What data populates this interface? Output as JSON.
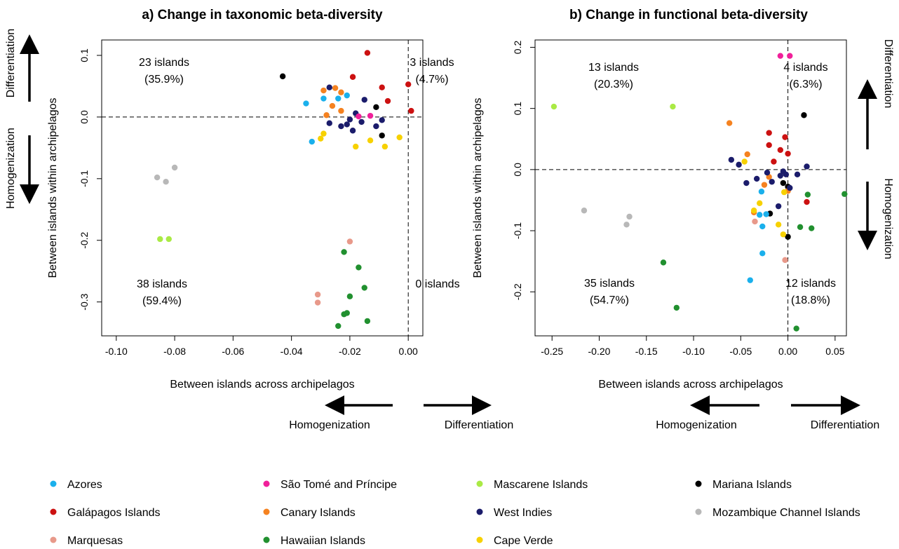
{
  "colors": {
    "Azores": "#1ab0ec",
    "São Tomé and Príncipe": "#f0209a",
    "Mascarene Islands": "#aaea45",
    "Mariana Islands": "#000000",
    "Galápagos Islands": "#cc1111",
    "Canary Islands": "#f58220",
    "West Indies": "#1b1c6b",
    "Mozambique Channel Islands": "#b8b8b8",
    "Marquesas": "#e8998a",
    "Hawaiian Islands": "#21902f",
    "Cape Verde": "#f7d100"
  },
  "legend": [
    "Azores",
    "São Tomé and Príncipe",
    "Mascarene Islands",
    "Mariana Islands",
    "Galápagos Islands",
    "Canary Islands",
    "West Indies",
    "Mozambique Channel Islands",
    "Marquesas",
    "Hawaiian Islands",
    "Cape Verde"
  ],
  "chart_data": [
    {
      "type": "scatter",
      "title": "a) Change in taxonomic beta-diversity",
      "xlabel": "Between islands across archipelagos",
      "ylabel": "Between islands within archipelagos",
      "xlim": [
        -0.105,
        0.005
      ],
      "ylim": [
        -0.355,
        0.125
      ],
      "xticks": [
        -0.1,
        -0.08,
        -0.06,
        -0.04,
        -0.02,
        0.0
      ],
      "xtick_labels": [
        "-0.10",
        "-0.08",
        "-0.06",
        "-0.04",
        "-0.02",
        "0.00"
      ],
      "yticks": [
        -0.3,
        -0.2,
        -0.1,
        0.0,
        0.1
      ],
      "ytick_labels": [
        "-0.3",
        "-0.2",
        "-0.1",
        "0.0",
        "0.1"
      ],
      "reference_lines": {
        "x": 0,
        "y": 0
      },
      "side_arrow_labels": {
        "up": "Differentiation",
        "down": "Homogenization"
      },
      "bottom_arrow_labels": {
        "left": "Homogenization",
        "right": "Differentiation"
      },
      "quadrant_labels": [
        {
          "position": "top-left",
          "count": "23 islands",
          "pct": "(35.9%)"
        },
        {
          "position": "top-right",
          "count": "3 islands",
          "pct": "(4.7%)"
        },
        {
          "position": "bottom-left",
          "count": "38 islands",
          "pct": "(59.4%)"
        },
        {
          "position": "bottom-right",
          "count": "0 islands",
          "pct": ""
        }
      ],
      "points": [
        {
          "g": "Azores",
          "x": -0.035,
          "y": 0.022
        },
        {
          "g": "Azores",
          "x": -0.033,
          "y": -0.04
        },
        {
          "g": "Azores",
          "x": -0.029,
          "y": 0.03
        },
        {
          "g": "Azores",
          "x": -0.021,
          "y": 0.035
        },
        {
          "g": "Azores",
          "x": -0.024,
          "y": 0.03
        },
        {
          "g": "Mariana Islands",
          "x": -0.043,
          "y": 0.066
        },
        {
          "g": "Mariana Islands",
          "x": -0.011,
          "y": 0.016
        },
        {
          "g": "Mariana Islands",
          "x": -0.009,
          "y": -0.03
        },
        {
          "g": "Galápagos Islands",
          "x": -0.014,
          "y": 0.104
        },
        {
          "g": "Galápagos Islands",
          "x": -0.019,
          "y": 0.065
        },
        {
          "g": "Galápagos Islands",
          "x": -0.009,
          "y": 0.048
        },
        {
          "g": "Galápagos Islands",
          "x": 0.0,
          "y": 0.053
        },
        {
          "g": "Galápagos Islands",
          "x": -0.007,
          "y": 0.026
        },
        {
          "g": "Galápagos Islands",
          "x": 0.001,
          "y": 0.01
        },
        {
          "g": "Canary Islands",
          "x": -0.029,
          "y": 0.043
        },
        {
          "g": "Canary Islands",
          "x": -0.025,
          "y": 0.047
        },
        {
          "g": "Canary Islands",
          "x": -0.023,
          "y": 0.04
        },
        {
          "g": "Canary Islands",
          "x": -0.026,
          "y": 0.018
        },
        {
          "g": "Canary Islands",
          "x": -0.023,
          "y": 0.01
        },
        {
          "g": "Canary Islands",
          "x": -0.028,
          "y": 0.003
        },
        {
          "g": "West Indies",
          "x": -0.027,
          "y": 0.048
        },
        {
          "g": "West Indies",
          "x": -0.018,
          "y": 0.006
        },
        {
          "g": "West Indies",
          "x": -0.02,
          "y": -0.004
        },
        {
          "g": "West Indies",
          "x": -0.027,
          "y": -0.01
        },
        {
          "g": "West Indies",
          "x": -0.023,
          "y": -0.015
        },
        {
          "g": "West Indies",
          "x": -0.016,
          "y": -0.008
        },
        {
          "g": "West Indies",
          "x": -0.019,
          "y": -0.022
        },
        {
          "g": "West Indies",
          "x": -0.011,
          "y": -0.015
        },
        {
          "g": "West Indies",
          "x": -0.015,
          "y": 0.028
        },
        {
          "g": "West Indies",
          "x": -0.009,
          "y": -0.005
        },
        {
          "g": "West Indies",
          "x": -0.021,
          "y": -0.012
        },
        {
          "g": "São Tomé and Príncipe",
          "x": -0.017,
          "y": 0.001
        },
        {
          "g": "São Tomé and Príncipe",
          "x": -0.013,
          "y": 0.002
        },
        {
          "g": "Cape Verde",
          "x": -0.03,
          "y": -0.035
        },
        {
          "g": "Cape Verde",
          "x": -0.018,
          "y": -0.048
        },
        {
          "g": "Cape Verde",
          "x": -0.013,
          "y": -0.038
        },
        {
          "g": "Cape Verde",
          "x": -0.008,
          "y": -0.048
        },
        {
          "g": "Cape Verde",
          "x": -0.003,
          "y": -0.033
        },
        {
          "g": "Cape Verde",
          "x": -0.029,
          "y": -0.027
        },
        {
          "g": "Mozambique Channel Islands",
          "x": -0.086,
          "y": -0.098
        },
        {
          "g": "Mozambique Channel Islands",
          "x": -0.083,
          "y": -0.105
        },
        {
          "g": "Mozambique Channel Islands",
          "x": -0.08,
          "y": -0.082
        },
        {
          "g": "Mascarene Islands",
          "x": -0.085,
          "y": -0.198
        },
        {
          "g": "Mascarene Islands",
          "x": -0.082,
          "y": -0.198
        },
        {
          "g": "Marquesas",
          "x": -0.02,
          "y": -0.202
        },
        {
          "g": "Marquesas",
          "x": -0.031,
          "y": -0.288
        },
        {
          "g": "Marquesas",
          "x": -0.031,
          "y": -0.301
        },
        {
          "g": "Hawaiian Islands",
          "x": -0.022,
          "y": -0.219
        },
        {
          "g": "Hawaiian Islands",
          "x": -0.017,
          "y": -0.244
        },
        {
          "g": "Hawaiian Islands",
          "x": -0.015,
          "y": -0.277
        },
        {
          "g": "Hawaiian Islands",
          "x": -0.02,
          "y": -0.291
        },
        {
          "g": "Hawaiian Islands",
          "x": -0.022,
          "y": -0.32
        },
        {
          "g": "Hawaiian Islands",
          "x": -0.021,
          "y": -0.318
        },
        {
          "g": "Hawaiian Islands",
          "x": -0.014,
          "y": -0.331
        },
        {
          "g": "Hawaiian Islands",
          "x": -0.024,
          "y": -0.339
        }
      ]
    },
    {
      "type": "scatter",
      "title": "b) Change in functional beta-diversity",
      "xlabel": "Between islands across archipelagos",
      "ylabel": "Between islands within archipelagos",
      "xlim": [
        -0.268,
        0.062
      ],
      "ylim": [
        -0.272,
        0.212
      ],
      "xticks": [
        -0.25,
        -0.2,
        -0.15,
        -0.1,
        -0.05,
        0.0,
        0.05
      ],
      "xtick_labels": [
        "-0.25",
        "-0.20",
        "-0.15",
        "-0.10",
        "-0.05",
        "0.00",
        "0.05"
      ],
      "yticks": [
        -0.2,
        -0.1,
        0.0,
        0.1,
        0.2
      ],
      "ytick_labels": [
        "-0.2",
        "-0.1",
        "0.0",
        "0.1",
        "0.2"
      ],
      "reference_lines": {
        "x": 0,
        "y": 0
      },
      "side_arrow_labels": {
        "up": "Differentiation",
        "down": "Homogenization"
      },
      "bottom_arrow_labels": {
        "left": "Homogenization",
        "right": "Differentiation"
      },
      "quadrant_labels": [
        {
          "position": "top-left",
          "count": "13 islands",
          "pct": "(20.3%)"
        },
        {
          "position": "top-right",
          "count": "4 islands",
          "pct": "(6.3%)"
        },
        {
          "position": "bottom-left",
          "count": "35 islands",
          "pct": "(54.7%)"
        },
        {
          "position": "bottom-right",
          "count": "12 islands",
          "pct": "(18.8%)"
        }
      ],
      "points": [
        {
          "g": "São Tomé and Príncipe",
          "x": -0.008,
          "y": 0.186
        },
        {
          "g": "São Tomé and Príncipe",
          "x": 0.002,
          "y": 0.186
        },
        {
          "g": "Mascarene Islands",
          "x": -0.248,
          "y": 0.103
        },
        {
          "g": "Mascarene Islands",
          "x": -0.122,
          "y": 0.103
        },
        {
          "g": "Mariana Islands",
          "x": 0.017,
          "y": 0.089
        },
        {
          "g": "Mariana Islands",
          "x": -0.019,
          "y": -0.072
        },
        {
          "g": "Mariana Islands",
          "x": -0.005,
          "y": -0.022
        },
        {
          "g": "Mariana Islands",
          "x": 0.0,
          "y": -0.028
        },
        {
          "g": "Mariana Islands",
          "x": 0.0,
          "y": -0.11
        },
        {
          "g": "Canary Islands",
          "x": -0.062,
          "y": 0.076
        },
        {
          "g": "Canary Islands",
          "x": -0.043,
          "y": 0.025
        },
        {
          "g": "Canary Islands",
          "x": -0.02,
          "y": -0.012
        },
        {
          "g": "Canary Islands",
          "x": -0.036,
          "y": -0.07
        },
        {
          "g": "Canary Islands",
          "x": -0.025,
          "y": -0.025
        },
        {
          "g": "Canary Islands",
          "x": 0.0,
          "y": -0.035
        },
        {
          "g": "Galápagos Islands",
          "x": -0.02,
          "y": 0.06
        },
        {
          "g": "Galápagos Islands",
          "x": -0.003,
          "y": 0.053
        },
        {
          "g": "Galápagos Islands",
          "x": -0.008,
          "y": 0.032
        },
        {
          "g": "Galápagos Islands",
          "x": -0.02,
          "y": 0.04
        },
        {
          "g": "Galápagos Islands",
          "x": 0.0,
          "y": 0.026
        },
        {
          "g": "Galápagos Islands",
          "x": -0.015,
          "y": 0.013
        },
        {
          "g": "Galápagos Islands",
          "x": 0.02,
          "y": -0.053
        },
        {
          "g": "West Indies",
          "x": -0.06,
          "y": 0.016
        },
        {
          "g": "West Indies",
          "x": -0.052,
          "y": 0.008
        },
        {
          "g": "West Indies",
          "x": -0.033,
          "y": -0.015
        },
        {
          "g": "West Indies",
          "x": -0.044,
          "y": -0.022
        },
        {
          "g": "West Indies",
          "x": -0.017,
          "y": -0.02
        },
        {
          "g": "West Indies",
          "x": -0.008,
          "y": -0.01
        },
        {
          "g": "West Indies",
          "x": 0.02,
          "y": 0.005
        },
        {
          "g": "West Indies",
          "x": 0.01,
          "y": -0.008
        },
        {
          "g": "West Indies",
          "x": -0.005,
          "y": -0.003
        },
        {
          "g": "West Indies",
          "x": 0.002,
          "y": -0.03
        },
        {
          "g": "West Indies",
          "x": -0.01,
          "y": -0.06
        },
        {
          "g": "West Indies",
          "x": -0.022,
          "y": -0.005
        },
        {
          "g": "West Indies",
          "x": -0.002,
          "y": -0.008
        },
        {
          "g": "Cape Verde",
          "x": -0.046,
          "y": 0.013
        },
        {
          "g": "Cape Verde",
          "x": -0.036,
          "y": -0.067
        },
        {
          "g": "Cape Verde",
          "x": -0.03,
          "y": -0.055
        },
        {
          "g": "Cape Verde",
          "x": -0.01,
          "y": -0.09
        },
        {
          "g": "Cape Verde",
          "x": -0.005,
          "y": -0.106
        },
        {
          "g": "Cape Verde",
          "x": -0.004,
          "y": -0.037
        },
        {
          "g": "Azores",
          "x": -0.03,
          "y": -0.074
        },
        {
          "g": "Azores",
          "x": -0.028,
          "y": -0.036
        },
        {
          "g": "Azores",
          "x": -0.023,
          "y": -0.073
        },
        {
          "g": "Azores",
          "x": -0.027,
          "y": -0.093
        },
        {
          "g": "Azores",
          "x": -0.027,
          "y": -0.137
        },
        {
          "g": "Azores",
          "x": -0.04,
          "y": -0.181
        },
        {
          "g": "Mozambique Channel Islands",
          "x": -0.216,
          "y": -0.067
        },
        {
          "g": "Mozambique Channel Islands",
          "x": -0.168,
          "y": -0.077
        },
        {
          "g": "Mozambique Channel Islands",
          "x": -0.171,
          "y": -0.09
        },
        {
          "g": "Marquesas",
          "x": -0.035,
          "y": -0.085
        },
        {
          "g": "Marquesas",
          "x": -0.003,
          "y": -0.148
        },
        {
          "g": "Hawaiian Islands",
          "x": 0.06,
          "y": -0.04
        },
        {
          "g": "Hawaiian Islands",
          "x": 0.021,
          "y": -0.041
        },
        {
          "g": "Hawaiian Islands",
          "x": 0.013,
          "y": -0.094
        },
        {
          "g": "Hawaiian Islands",
          "x": 0.025,
          "y": -0.096
        },
        {
          "g": "Hawaiian Islands",
          "x": -0.132,
          "y": -0.152
        },
        {
          "g": "Hawaiian Islands",
          "x": -0.118,
          "y": -0.226
        },
        {
          "g": "Hawaiian Islands",
          "x": 0.009,
          "y": -0.26
        }
      ]
    }
  ]
}
